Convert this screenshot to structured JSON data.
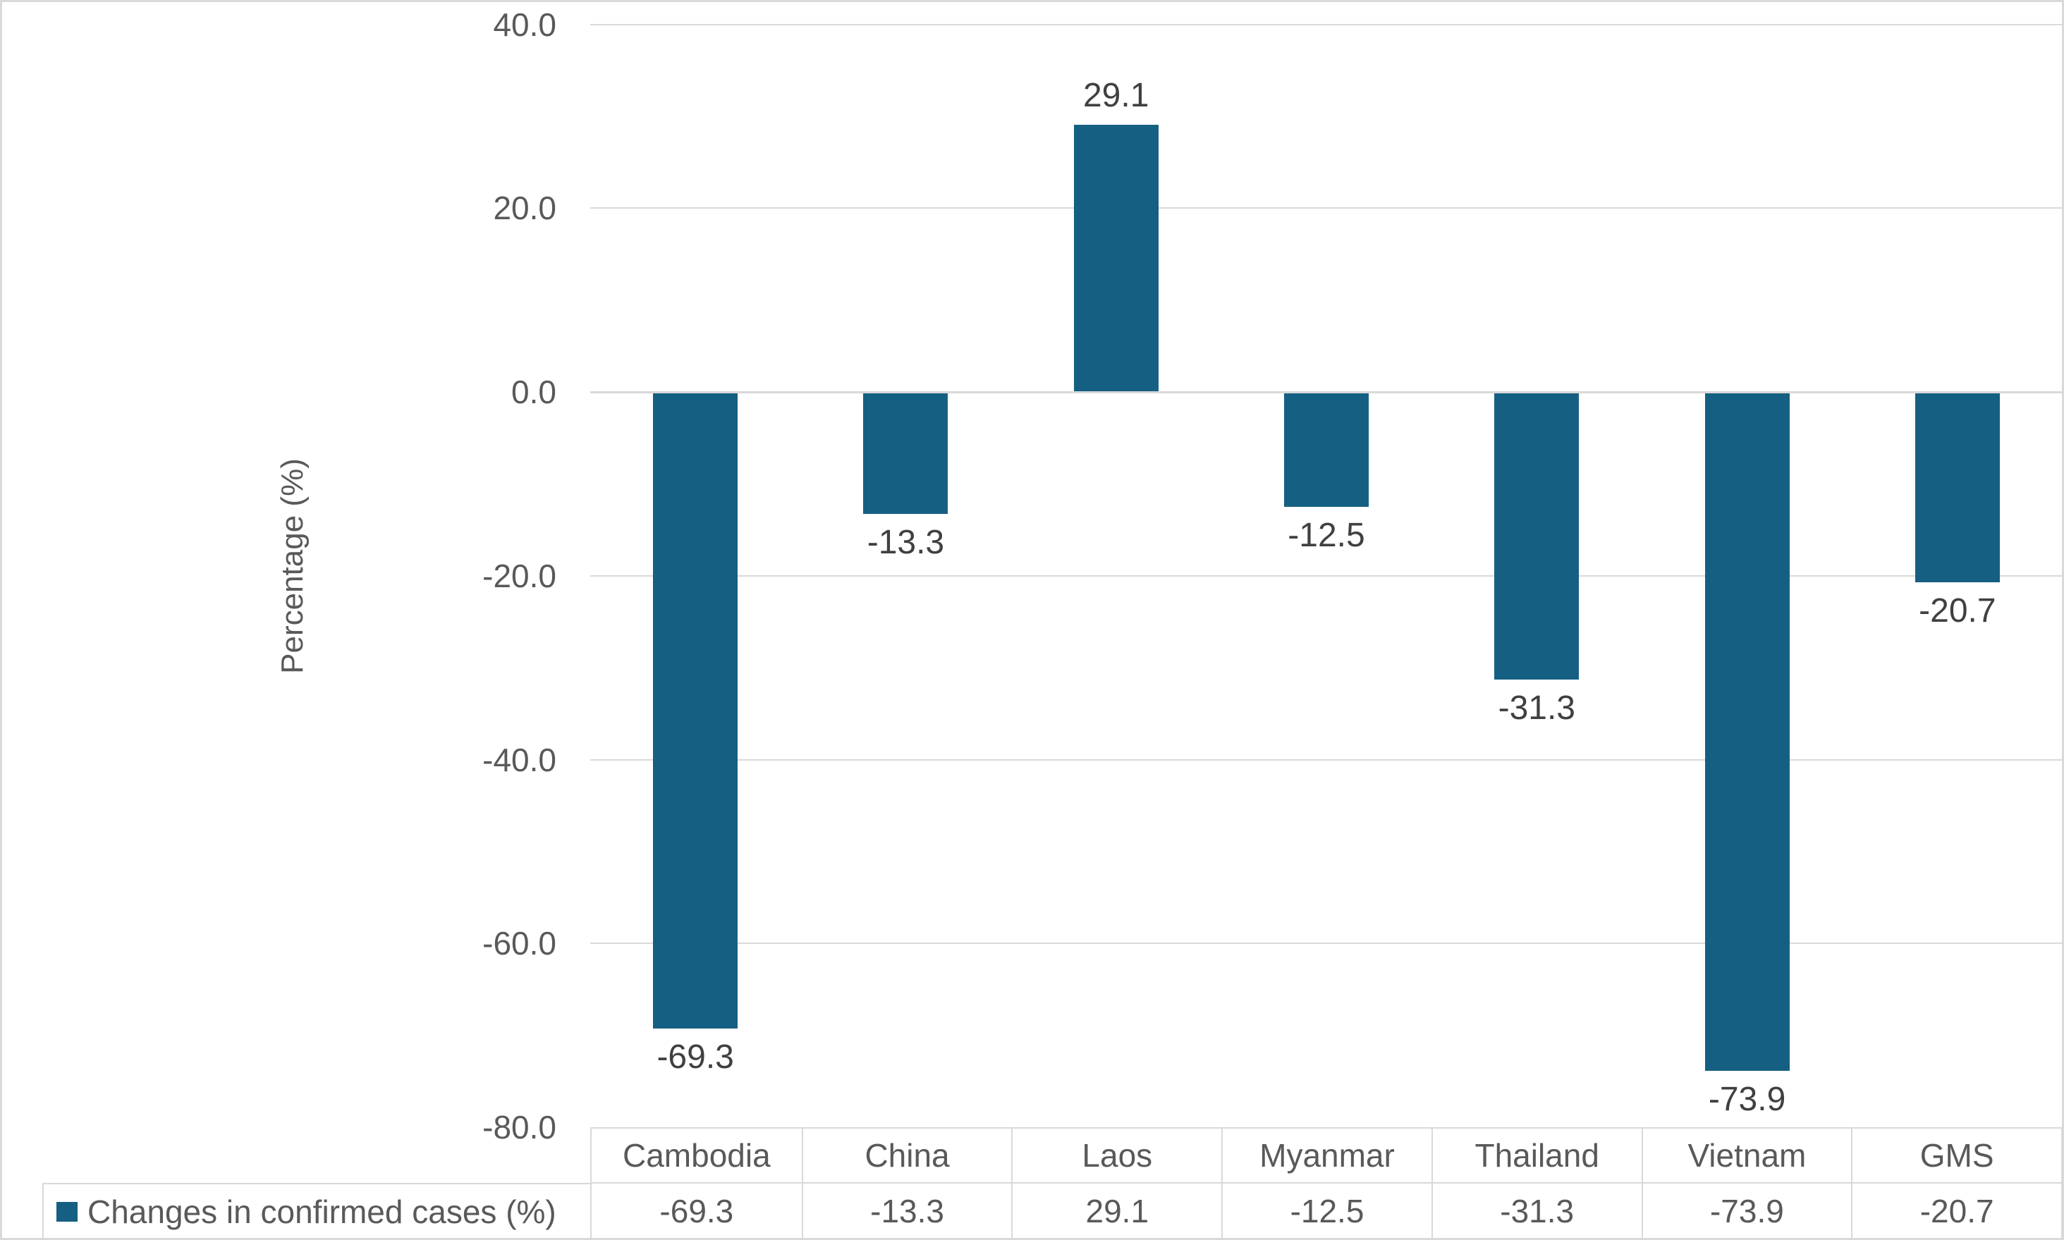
{
  "chart_data": {
    "type": "bar",
    "categories": [
      "Cambodia",
      "China",
      "Laos",
      "Myanmar",
      "Thailand",
      "Vietnam",
      "GMS"
    ],
    "series": [
      {
        "name": "Changes in confirmed cases (%)",
        "values": [
          -69.3,
          -13.3,
          29.1,
          -12.5,
          -31.3,
          -73.9,
          -20.7
        ],
        "labels": [
          "-69.3",
          "-13.3",
          "29.1",
          "-12.5",
          "-31.3",
          "-73.9",
          "-20.7"
        ],
        "color": "#156082"
      }
    ],
    "xlabel": "",
    "ylabel": "Percentage (%)",
    "ylim": [
      -80,
      40
    ],
    "yticks": [
      {
        "value": 40,
        "label": "40.0"
      },
      {
        "value": 20,
        "label": "20.0"
      },
      {
        "value": 0,
        "label": "0.0"
      },
      {
        "value": -20,
        "label": "-20.0"
      },
      {
        "value": -40,
        "label": "-40.0"
      },
      {
        "value": -60,
        "label": "-60.0"
      },
      {
        "value": -80,
        "label": "-80.0"
      }
    ],
    "grid": true,
    "legend_position": "bottom-left",
    "data_table_shown": true
  },
  "legend": {
    "marker": "square-icon",
    "label": "Changes in confirmed cases (%)"
  },
  "colors": {
    "bar": "#156082",
    "grid": "#D9D9D9",
    "axis_text": "#595959",
    "data_label_text": "#404040",
    "background": "#FFFFFF"
  }
}
